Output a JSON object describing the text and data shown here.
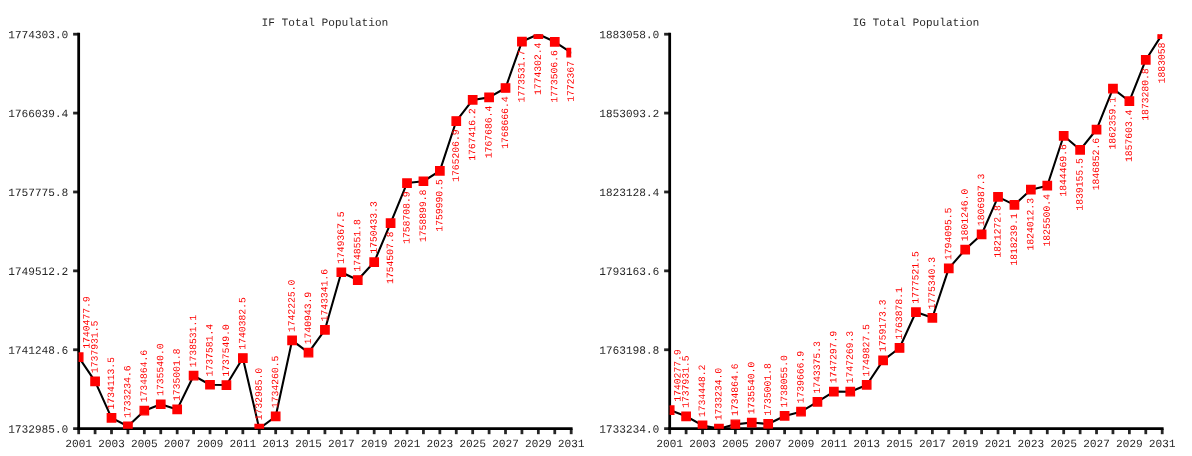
{
  "chart_data": [
    {
      "type": "line",
      "title": "IF Total Population",
      "x": [
        2001,
        2002,
        2003,
        2004,
        2005,
        2006,
        2007,
        2008,
        2009,
        2010,
        2011,
        2012,
        2013,
        2014,
        2015,
        2016,
        2017,
        2018,
        2019,
        2020,
        2021,
        2022,
        2023,
        2024,
        2025,
        2026,
        2027,
        2028,
        2029,
        2030,
        2031
      ],
      "series": [
        {
          "color": "#000000",
          "colors": [
            "#ff0000",
            "#ff0000",
            "#ff0000",
            "#ff0000",
            "#ff0000",
            "#ff0000",
            "#ff0000",
            "#ff0000",
            "#ff0000",
            "#ff0000",
            "#ff0000",
            "#ff0000",
            "#ff0000",
            "#ff0000",
            "#ff0000",
            "#ff0000",
            "#ff0000",
            "#ff0000",
            "#ff0000",
            "#ff0000",
            "#ff0000",
            "#ff0000",
            "#ff0000",
            "#ff0000",
            "#ff0000",
            "#ff0000",
            "#ff0000",
            "#ff0000",
            "#ff0000",
            "#ff0000",
            "#ff0000"
          ],
          "values": [
            1740477.9,
            1737931.5,
            1734113.5,
            1733234.6,
            1734864.6,
            1735540.0,
            1735001.8,
            1738531.1,
            1737581.4,
            1737549.0,
            1740382.5,
            1732985.0,
            1734260.5,
            1742225.0,
            1740943.9,
            1743341.6,
            1749367.5,
            1748551.8,
            1750433.3,
            1754507.8,
            1758708.9,
            1758899.8,
            1759990.5,
            1765206.9,
            1767416.2,
            1767686.4,
            1768666.4,
            1773531.7,
            1774302.4,
            1773506.6,
            1772367
          ],
          "value_labels": [
            "1740477.9",
            "1737931.5",
            "1734113.5",
            "1733234.6",
            "1734864.6",
            "1735540.0",
            "1735001.8",
            "1738531.1",
            "1737581.4",
            "1737549.0",
            "1740382.5",
            "1732985.0",
            "1734260.5",
            "1742225.0",
            "1740943.9",
            "1743341.6",
            "1749367.5",
            "1748551.8",
            "1750433.3",
            "1754507.8",
            "1758708.9",
            "1758899.8",
            "1759990.5",
            "1765206.9",
            "1767416.2",
            "1767686.4",
            "1768666.4",
            "1773531.7",
            "1774302.4",
            "1773506.6",
            "1772367"
          ]
        }
      ],
      "xlim": [
        2001,
        2031
      ],
      "ylim": [
        1732985.0,
        1774303.0
      ],
      "xticks": [
        2001,
        {
          "value": 2002,
          "label": null
        },
        2003,
        {
          "value": 2004,
          "label": null
        },
        2005,
        {
          "value": 2006,
          "label": null
        },
        2007,
        {
          "value": 2008,
          "label": null
        },
        2009,
        {
          "value": 2010,
          "label": null
        },
        2011,
        {
          "value": 2012,
          "label": null
        },
        2013,
        {
          "value": 2014,
          "label": null
        },
        2015,
        {
          "value": 2016,
          "label": null
        },
        2017,
        {
          "value": 2018,
          "label": null
        },
        2019,
        {
          "value": 2020,
          "label": null
        },
        2021,
        {
          "value": 2022,
          "label": null
        },
        2023,
        {
          "value": 2024,
          "label": null
        },
        2025,
        {
          "value": 2026,
          "label": null
        },
        2027,
        {
          "value": 2028,
          "label": null
        },
        2029,
        {
          "value": 2030,
          "label": null
        },
        2031
      ],
      "yticks": [
        {
          "value": 1732985.0,
          "label": "1732985.0"
        },
        {
          "value": 1741248.6,
          "label": "1741248.6"
        },
        {
          "value": 1749512.2,
          "label": "1749512.2"
        },
        {
          "value": 1757775.8,
          "label": "1757775.8"
        },
        {
          "value": 1766039.4,
          "label": "1766039.4"
        },
        {
          "value": 1774303.0,
          "label": "1774303.0"
        }
      ],
      "marker": "square",
      "line_style": "solid",
      "grid": false,
      "legend": false
    },
    {
      "type": "line",
      "title": "IG Total Population",
      "x": [
        2001,
        2002,
        2003,
        2004,
        2005,
        2006,
        2007,
        2008,
        2009,
        2010,
        2011,
        2012,
        2013,
        2014,
        2015,
        2016,
        2017,
        2018,
        2019,
        2020,
        2021,
        2022,
        2023,
        2024,
        2025,
        2026,
        2027,
        2028,
        2029,
        2030,
        2031
      ],
      "series": [
        {
          "color": "#000000",
          "colors": [
            "#ff0000",
            "#ff0000",
            "#ff0000",
            "#ff0000",
            "#ff0000",
            "#ff0000",
            "#ff0000",
            "#ff0000",
            "#ff0000",
            "#ff0000",
            "#ff0000",
            "#ff0000",
            "#ff0000",
            "#ff0000",
            "#ff0000",
            "#ff0000",
            "#ff0000",
            "#ff0000",
            "#ff0000",
            "#ff0000",
            "#ff0000",
            "#ff0000",
            "#ff0000",
            "#ff0000",
            "#ff0000",
            "#ff0000",
            "#ff0000",
            "#ff0000",
            "#ff0000",
            "#ff0000",
            "#ff0000"
          ],
          "values": [
            1740277.9,
            1737931.5,
            1734448.2,
            1733234.0,
            1734864.6,
            1735540.0,
            1735001.8,
            1738055.0,
            1739666.9,
            1743375.3,
            1747297.9,
            1747269.3,
            1749827.5,
            1759173.3,
            1763878.1,
            1777521.5,
            1775340.3,
            1794095.5,
            1801246.0,
            1806987.3,
            1821272.8,
            1818239.1,
            1824012.3,
            1825500.4,
            1844469.6,
            1839155.5,
            1846852.6,
            1862359.1,
            1857603.4,
            1873280.8,
            1883058
          ],
          "value_labels": [
            "1740277.9",
            "1737931.5",
            "1734448.2",
            "1733234.0",
            "1734864.6",
            "1735540.0",
            "1735001.8",
            "1738055.0",
            "1739666.9",
            "1743375.3",
            "1747297.9",
            "1747269.3",
            "1749827.5",
            "1759173.3",
            "1763878.1",
            "1777521.5",
            "1775340.3",
            "1794095.5",
            "1801246.0",
            "1806987.3",
            "1821272.8",
            "1818239.1",
            "1824012.3",
            "1825500.4",
            "1844469.6",
            "1839155.5",
            "1846852.6",
            "1862359.1",
            "1857603.4",
            "1873280.8",
            "1883058"
          ]
        }
      ],
      "xlim": [
        2001,
        2031
      ],
      "ylim": [
        1733234.0,
        1883058.0
      ],
      "xticks": [
        2001,
        {
          "value": 2002,
          "label": null
        },
        2003,
        {
          "value": 2004,
          "label": null
        },
        2005,
        {
          "value": 2006,
          "label": null
        },
        2007,
        {
          "value": 2008,
          "label": null
        },
        2009,
        {
          "value": 2010,
          "label": null
        },
        2011,
        {
          "value": 2012,
          "label": null
        },
        2013,
        {
          "value": 2014,
          "label": null
        },
        2015,
        {
          "value": 2016,
          "label": null
        },
        2017,
        {
          "value": 2018,
          "label": null
        },
        2019,
        {
          "value": 2020,
          "label": null
        },
        2021,
        {
          "value": 2022,
          "label": null
        },
        2023,
        {
          "value": 2024,
          "label": null
        },
        2025,
        {
          "value": 2026,
          "label": null
        },
        2027,
        {
          "value": 2028,
          "label": null
        },
        2029,
        {
          "value": 2030,
          "label": null
        },
        2031
      ],
      "yticks": [
        {
          "value": 1733234.0,
          "label": "1733234.0"
        },
        {
          "value": 1763198.8,
          "label": "1763198.8"
        },
        {
          "value": 1793163.6,
          "label": "1793163.6"
        },
        {
          "value": 1823128.4,
          "label": "1823128.4"
        },
        {
          "value": 1853093.2,
          "label": "1853093.2"
        },
        {
          "value": 1883058.0,
          "label": "1883058.0"
        }
      ],
      "marker": "square",
      "line_style": "solid",
      "grid": false,
      "legend": false
    }
  ]
}
